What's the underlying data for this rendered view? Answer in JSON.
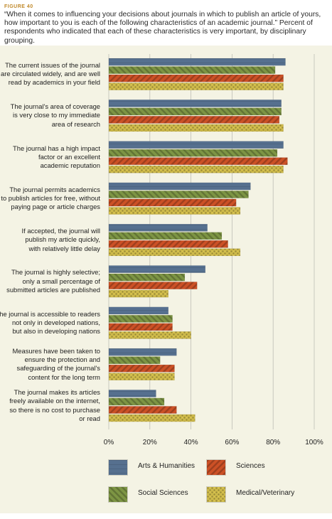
{
  "figure_label": "FIGURE 40",
  "subtitle": "“When it comes to influencing your decisions about journals in which to publish an article of yours, how important to you is each of the following characteristics of an academic journal.” Percent of respondents who indicated that each of these characteristics is very important, by disciplinary grouping.",
  "colors": {
    "arts": "#56708f",
    "social": "#7d9544",
    "sciences": "#cc5126",
    "medical": "#cdb94a",
    "panel": "#f4f3e4"
  },
  "chart_data": {
    "type": "bar",
    "orientation": "horizontal",
    "categories": [
      [
        "The current issues of the journal",
        "are circulated widely, and are well",
        "read by academics in your field"
      ],
      [
        "The journal's area of coverage",
        "is very close to my immediate",
        "area of research"
      ],
      [
        "The journal has a high impact",
        "factor or an excellent",
        "academic reputation"
      ],
      [
        "The journal permits academics",
        "to publish articles for free, without",
        "paying page or article charges"
      ],
      [
        "If accepted, the journal will",
        "publish my article quickly,",
        "with relatively little delay"
      ],
      [
        "The journal is highly selective;",
        "only a small percentage of",
        "submitted articles are published"
      ],
      [
        "The journal is accessible to readers",
        "not only in developed nations,",
        "but also in developing nations"
      ],
      [
        "Measures have been taken to",
        "ensure the protection and",
        "safeguarding of the journal's",
        "content for the long term"
      ],
      [
        "The journal makes its articles",
        "freely available on the internet,",
        "so there is no cost to purchase",
        "or read"
      ]
    ],
    "series": [
      {
        "name": "Arts & Humanities",
        "color_key": "arts",
        "values": [
          86,
          84,
          85,
          69,
          48,
          47,
          29,
          33,
          23
        ]
      },
      {
        "name": "Social Sciences",
        "color_key": "social",
        "values": [
          81,
          84,
          82,
          68,
          55,
          37,
          31,
          25,
          27
        ]
      },
      {
        "name": "Sciences",
        "color_key": "sciences",
        "values": [
          85,
          83,
          87,
          62,
          58,
          43,
          31,
          32,
          33
        ]
      },
      {
        "name": "Medical/Veterinary",
        "color_key": "medical",
        "values": [
          85,
          85,
          85,
          64,
          64,
          29,
          40,
          32,
          42
        ]
      }
    ],
    "xlim": [
      0,
      100
    ],
    "xticks": [
      "0%",
      "20%",
      "40%",
      "60%",
      "80%",
      "100%"
    ],
    "grid": true,
    "legend": [
      "Arts & Humanities",
      "Sciences",
      "Social Sciences",
      "Medical/Veterinary"
    ],
    "legend_placement": "bottom"
  }
}
